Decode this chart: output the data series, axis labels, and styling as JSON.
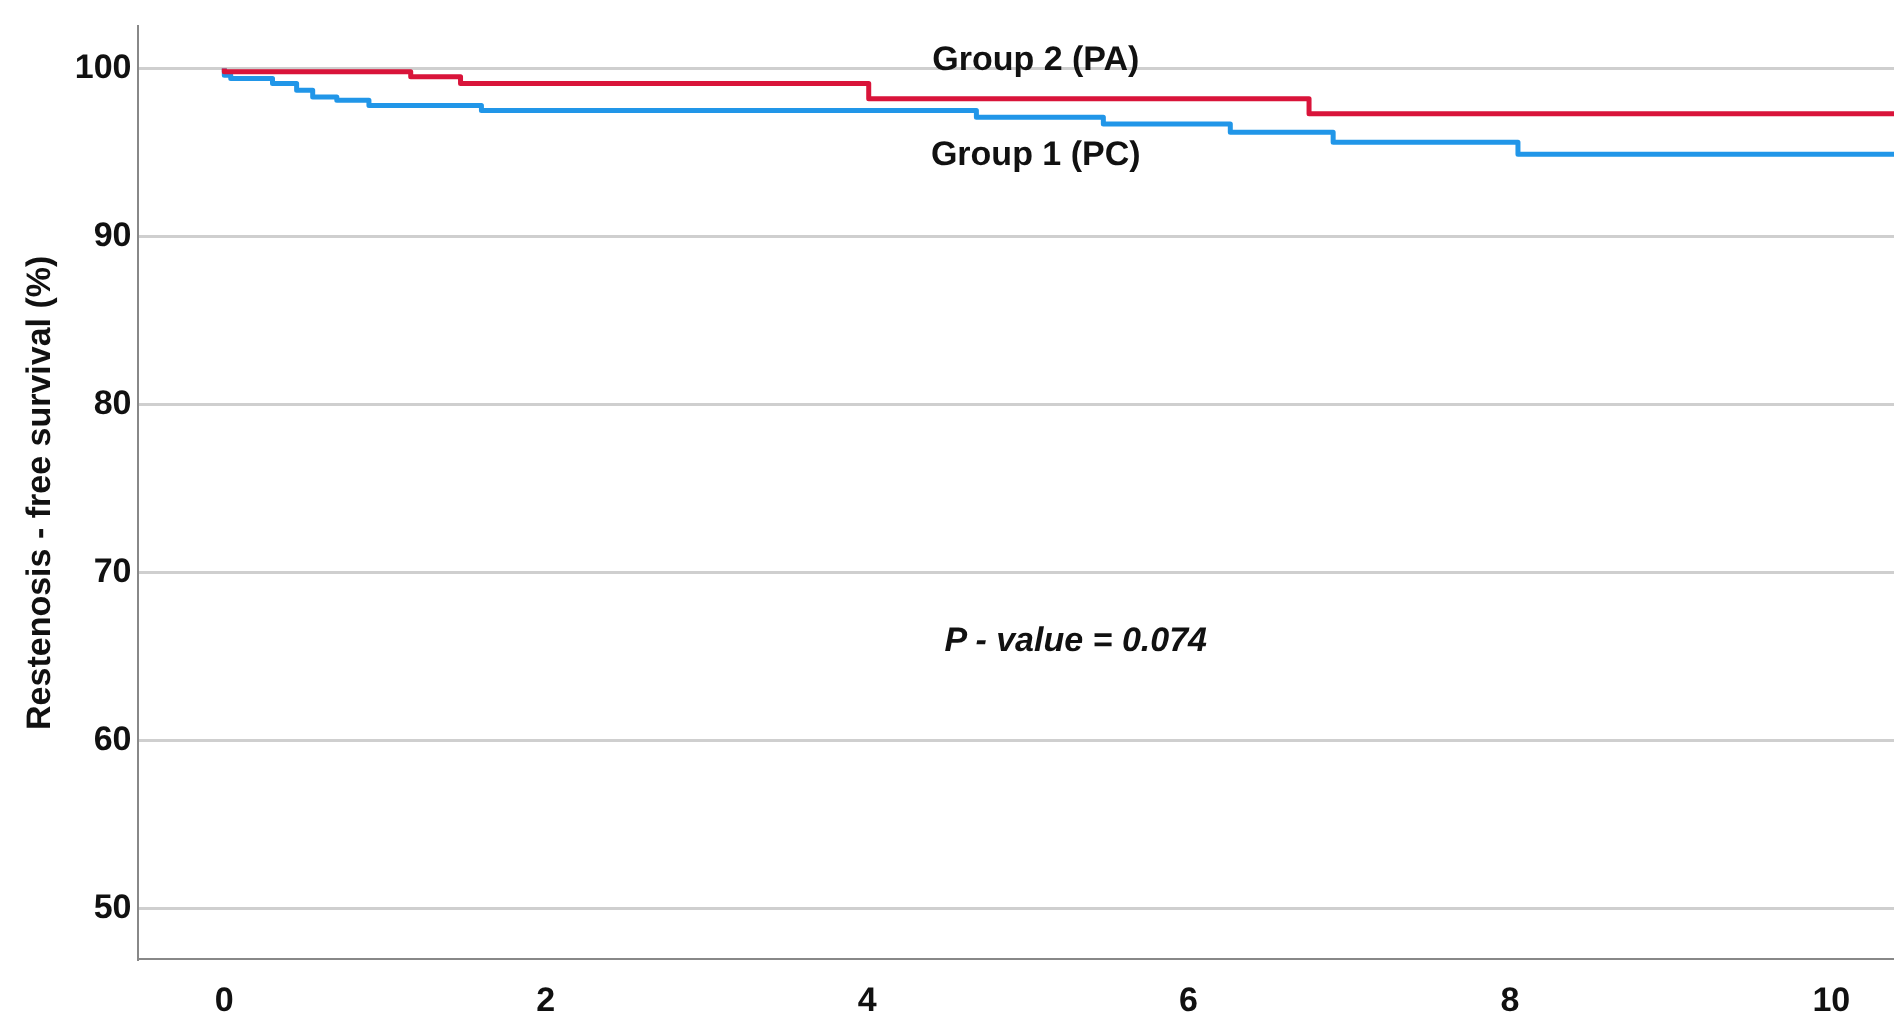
{
  "chart_data": {
    "type": "step",
    "ylabel": "Restenosis - free survival (%)",
    "annotations": [
      "P - value = 0.074"
    ],
    "series": [
      {
        "name": "Group 2 (PA)",
        "color": "#d9143a",
        "x": [
          0,
          1.16,
          1.47,
          4.01,
          6.75,
          7.48,
          10.39
        ],
        "values": [
          100,
          99.8,
          99.5,
          99.1,
          98.2,
          97.3,
          97.3
        ]
      },
      {
        "name": "Group 1 (PC)",
        "color": "#2196e8",
        "x": [
          0,
          0.04,
          0.3,
          0.45,
          0.55,
          0.7,
          0.9,
          1.6,
          4.68,
          5.47,
          6.26,
          6.9,
          8.05,
          9.2,
          10.39
        ],
        "values": [
          100,
          99.6,
          99.4,
          99.1,
          98.7,
          98.3,
          98.1,
          97.8,
          97.5,
          97.1,
          96.7,
          96.2,
          95.6,
          94.9,
          94.9
        ]
      }
    ],
    "xlim": [
      -0.54,
      10.39
    ],
    "xticks": [
      0,
      2,
      4,
      6,
      8,
      10
    ],
    "ylim": [
      47,
      102.5
    ],
    "yticks": [
      50,
      60,
      70,
      80,
      90,
      100
    ],
    "grid": "y",
    "legend": false
  }
}
